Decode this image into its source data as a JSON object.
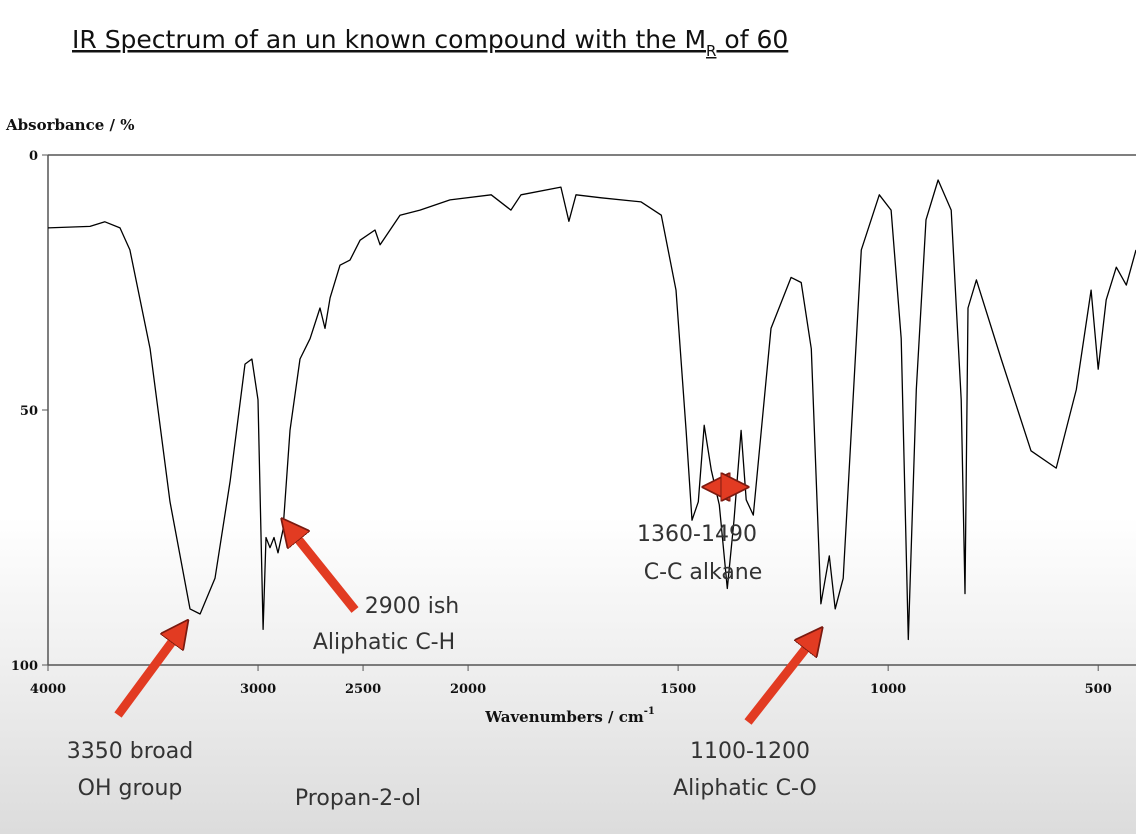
{
  "chart_data": {
    "type": "line",
    "title": "IR Spectrum of an un known compound with the M",
    "title_subscript": "R",
    "title_tail": " of 60",
    "y_label": "Absorbance / %",
    "x_label": "Wavenumbers / cm",
    "x_label_superscript": "-1",
    "x": [
      4000,
      3800,
      3729,
      3657,
      3610,
      3514,
      3419,
      3324,
      3276,
      3205,
      3133,
      3062,
      3029,
      3000,
      2976,
      2962,
      2943,
      2924,
      2905,
      2881,
      2848,
      2800,
      2752,
      2705,
      2681,
      2657,
      2610,
      2562,
      2514,
      2443,
      2419,
      2324,
      2229,
      2086,
      1945,
      1898,
      1874,
      1779,
      1760,
      1743,
      1683,
      1588,
      1540,
      1505,
      1481,
      1467,
      1452,
      1438,
      1421,
      1402,
      1383,
      1367,
      1350,
      1338,
      1321,
      1302,
      1279,
      1231,
      1207,
      1183,
      1160,
      1140,
      1126,
      1107,
      1064,
      1021,
      993,
      969,
      952,
      933,
      910,
      881,
      850,
      826,
      817,
      810,
      790,
      731,
      660,
      600,
      552,
      517,
      500,
      481,
      457,
      433,
      410
    ],
    "values": [
      14.3,
      14,
      13.1,
      14.3,
      18.6,
      38,
      68,
      89,
      90,
      83,
      64,
      41,
      40,
      48,
      93,
      75,
      77,
      75,
      78,
      73.5,
      54,
      40,
      36,
      30,
      34,
      28,
      21.6,
      20.6,
      16.7,
      14.7,
      17.6,
      11.8,
      10.8,
      8.8,
      7.8,
      10.8,
      7.8,
      6.3,
      13,
      7.8,
      8.4,
      9.2,
      11.8,
      26.5,
      54,
      71.6,
      68,
      53,
      61.8,
      68.6,
      85,
      71.6,
      54,
      67.6,
      70.6,
      54,
      34,
      24,
      25,
      38,
      88,
      78.6,
      89,
      83,
      18.6,
      7.8,
      10.8,
      36,
      95,
      46,
      12.7,
      4.9,
      10.8,
      48,
      86,
      30,
      24.5,
      40,
      58,
      61.4,
      46,
      26.5,
      42,
      28.4,
      22,
      25.5,
      18.6
    ],
    "color": "#000000",
    "xlim": [
      4000,
      410
    ],
    "x_scale_change": {
      "at": 2000,
      "factor": 2
    },
    "xticks": [
      4000,
      3000,
      2500,
      2000,
      1500,
      1000,
      500
    ],
    "ylim": [
      0,
      100
    ],
    "y_inverted": true,
    "yticks": [
      0,
      50,
      100
    ],
    "annotations": [
      "3350 broad",
      "OH group",
      "2900 ish",
      "Aliphatic C-H",
      "1360-1490",
      "C-C alkane",
      "1100-1200",
      "Aliphatic C-O",
      "Propan-2-ol"
    ]
  }
}
